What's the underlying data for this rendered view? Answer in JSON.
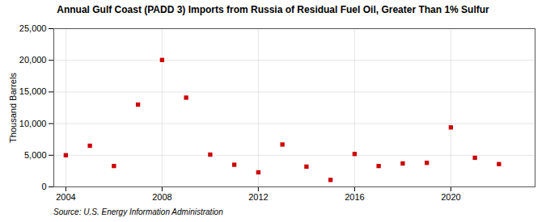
{
  "chart_data": {
    "type": "scatter",
    "title": "Annual Gulf Coast (PADD 3) Imports from Russia of Residual Fuel Oil, Greater Than 1% Sulfur",
    "ylabel": "Thousand Barrels",
    "caption": "Source: U.S. Energy Information Administration",
    "x": [
      2004,
      2005,
      2006,
      2007,
      2008,
      2009,
      2010,
      2011,
      2012,
      2013,
      2014,
      2015,
      2016,
      2017,
      2018,
      2019,
      2020,
      2021,
      2022
    ],
    "values": [
      5000,
      6500,
      3300,
      13000,
      20050,
      14100,
      5100,
      3500,
      2300,
      6700,
      3200,
      1100,
      5200,
      3300,
      3700,
      3800,
      9400,
      4600,
      3600
    ],
    "color": "#cc0000",
    "marker": "square",
    "xlim": [
      2003.5,
      2023.5
    ],
    "xticks": [
      2004,
      2008,
      2012,
      2016,
      2020
    ],
    "ylim": [
      0,
      25000
    ],
    "yticks": [
      0,
      {
        "value": 5000,
        "label": "5,000"
      },
      {
        "value": 10000,
        "label": "10,000"
      },
      {
        "value": 15000,
        "label": "15,000"
      },
      {
        "value": 20000,
        "label": "20,000"
      },
      {
        "value": 25000,
        "label": "25,000"
      }
    ],
    "grid": true
  }
}
